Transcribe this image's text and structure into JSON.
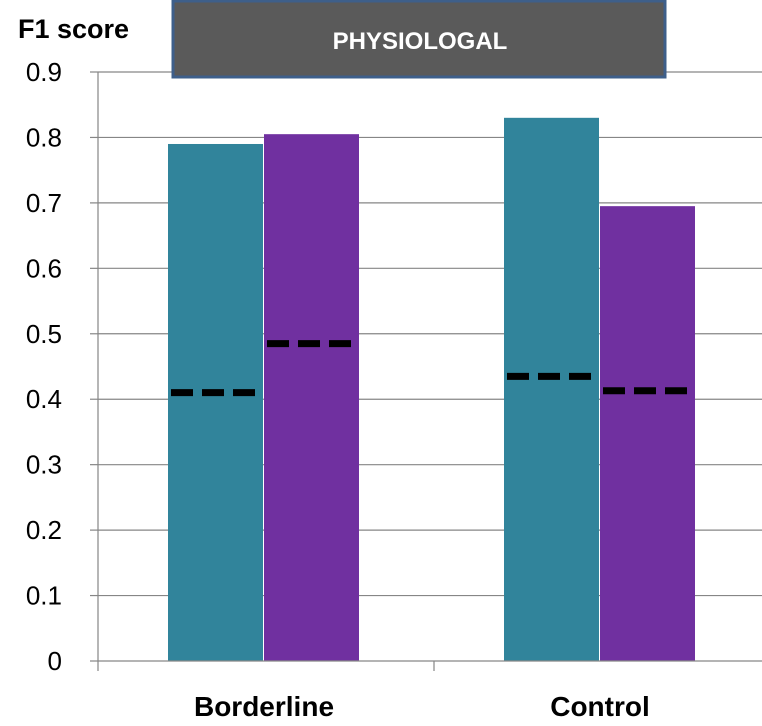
{
  "chart_data": {
    "type": "bar",
    "title": "PHYSIOLOGAL",
    "ylabel": "F1 score",
    "xlabel": "",
    "categories": [
      "Borderline",
      "Control"
    ],
    "series": [
      {
        "values": [
          0.79,
          0.83
        ],
        "baseline": [
          0.41,
          0.435
        ]
      },
      {
        "values": [
          0.805,
          0.695
        ],
        "baseline": [
          0.485,
          0.413
        ]
      }
    ],
    "ylim": [
      0,
      0.9
    ],
    "yticks": [
      "0",
      "0.1",
      "0.2",
      "0.3",
      "0.4",
      "0.5",
      "0.6",
      "0.7",
      "0.8",
      "0.9"
    ],
    "grid": true,
    "colors": {
      "series1": "#31849B",
      "series2": "#7030A0",
      "baseline": "#000000",
      "grid": "#868686"
    }
  }
}
